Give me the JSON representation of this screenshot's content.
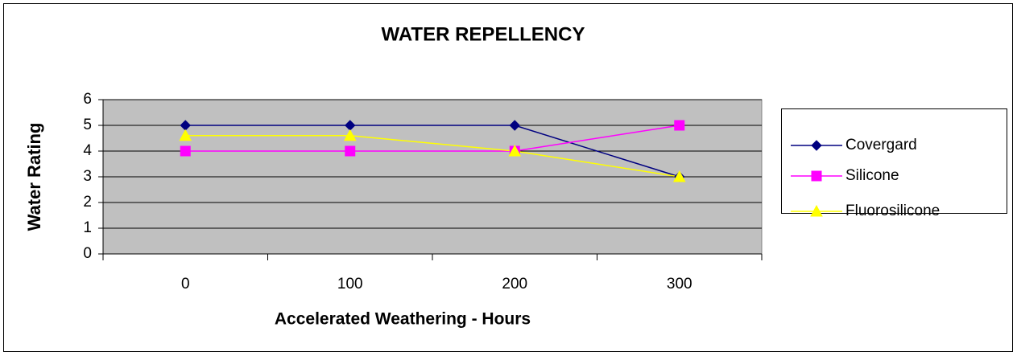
{
  "chart_data": {
    "type": "line",
    "title": "WATER REPELLENCY",
    "x_label": "Accelerated Weathering - Hours",
    "y_label": "Water Rating",
    "categories": [
      "0",
      "100",
      "200",
      "300"
    ],
    "series": [
      {
        "name": "Covergard",
        "color": "#000080",
        "marker": "diamond",
        "values": [
          5,
          5,
          5,
          3
        ]
      },
      {
        "name": "Silicone",
        "color": "#ff00ff",
        "marker": "square",
        "values": [
          4,
          4,
          4,
          5
        ]
      },
      {
        "name": "Fluorosilicone",
        "color": "#ffff00",
        "marker": "triangle",
        "values": [
          4.6,
          4.6,
          4,
          3
        ]
      }
    ],
    "ylim": [
      0,
      6
    ],
    "yticks": [
      0,
      1,
      2,
      3,
      4,
      5,
      6
    ],
    "grid": true,
    "legend": "right",
    "plot_background": "#c0c0c0"
  }
}
